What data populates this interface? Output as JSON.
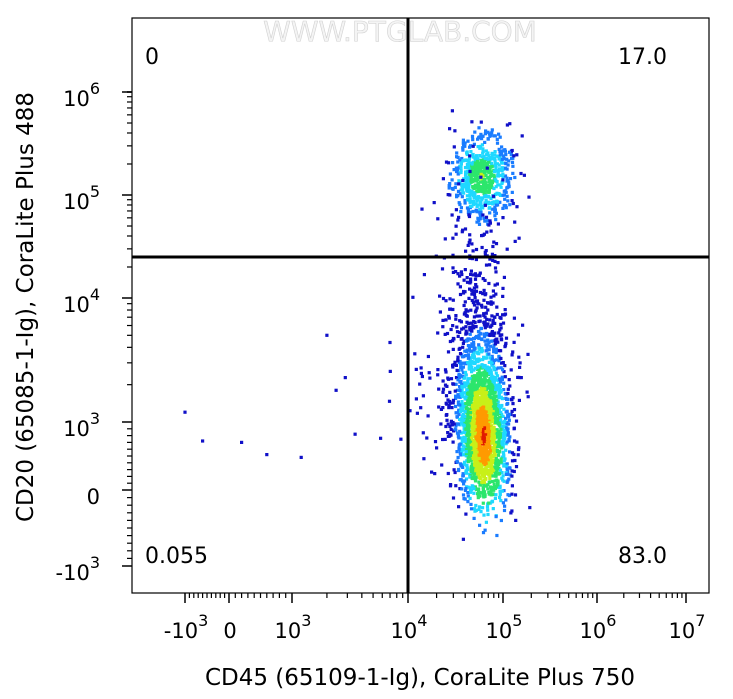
{
  "chart_data": {
    "type": "scatter",
    "subtype": "flow-cytometry-density-plot",
    "watermark": "WWW.PTGLAB.COM",
    "xlabel": "CD45 (65109-1-Ig), CoraLite Plus 750",
    "ylabel": "CD20 (65085-1-Ig), CoraLite Plus 488",
    "x_scale": "biexponential",
    "y_scale": "biexponential",
    "x_ticks": [
      {
        "base": "-10",
        "exp": "3",
        "value": -1000
      },
      {
        "base": "0",
        "exp": "",
        "value": 0
      },
      {
        "base": "10",
        "exp": "3",
        "value": 1000
      },
      {
        "base": "10",
        "exp": "4",
        "value": 10000
      },
      {
        "base": "10",
        "exp": "5",
        "value": 100000
      },
      {
        "base": "10",
        "exp": "6",
        "value": 1000000
      },
      {
        "base": "10",
        "exp": "7",
        "value": 10000000
      }
    ],
    "y_ticks": [
      {
        "base": "-10",
        "exp": "3",
        "value": -1000
      },
      {
        "base": "0",
        "exp": "",
        "value": 0
      },
      {
        "base": "10",
        "exp": "3",
        "value": 1000
      },
      {
        "base": "10",
        "exp": "4",
        "value": 10000
      },
      {
        "base": "10",
        "exp": "5",
        "value": 100000
      },
      {
        "base": "10",
        "exp": "6",
        "value": 1000000
      }
    ],
    "gates": {
      "x": 10000,
      "y": 25000
    },
    "quadrants": [
      {
        "position": "top-left",
        "label": "0"
      },
      {
        "position": "top-right",
        "label": "17.0"
      },
      {
        "position": "bottom-left",
        "label": "0.055"
      },
      {
        "position": "bottom-right",
        "label": "83.0"
      }
    ],
    "populations": [
      {
        "center_x": 60000,
        "center_y": 150000,
        "quadrant": "top-right"
      },
      {
        "center_x": 62000,
        "center_y": 800,
        "quadrant": "bottom-right"
      }
    ],
    "colormap": [
      "#1010c8",
      "#1a7cff",
      "#1ed8ff",
      "#2ce66c",
      "#c8f018",
      "#ff9a00",
      "#e11a00"
    ]
  }
}
